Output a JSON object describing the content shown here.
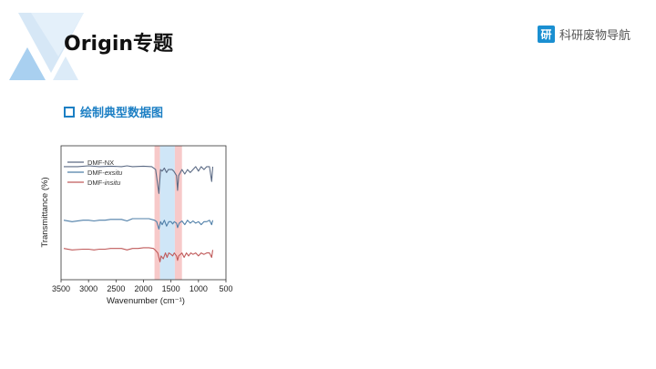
{
  "header": {
    "title": "Origin专题",
    "brand_logo_char": "研",
    "brand_name": "科研废物导航"
  },
  "section": {
    "heading": "绘制典型数据图"
  },
  "colors": {
    "accent_blue": "#1c7fc4",
    "brand_blue": "#1a8fd1",
    "series_nx": "#5c6b85",
    "series_exsitu": "#4f7fa8",
    "series_insitu": "#c05a5a",
    "band_red": "#f7c9c9",
    "band_blue": "#cfe6f7"
  },
  "chart_data": {
    "type": "line",
    "xlabel": "Wavenumber (cm⁻¹)",
    "ylabel": "Transmittance (%)",
    "xlim": [
      3500,
      500
    ],
    "xticks": [
      3500,
      3000,
      2500,
      2000,
      1500,
      1000,
      500
    ],
    "xtick_labels": [
      "3500",
      "3000",
      "2500",
      "2000",
      "1500",
      "1000",
      "500"
    ],
    "highlight_bands": [
      {
        "from": 1800,
        "to": 1700,
        "color": "red"
      },
      {
        "from": 1700,
        "to": 1430,
        "color": "blue"
      },
      {
        "from": 1430,
        "to": 1300,
        "color": "red"
      }
    ],
    "series": [
      {
        "name": "DMF-NX",
        "color": "#5c6b85",
        "points": [
          [
            3450,
            86
          ],
          [
            3200,
            86
          ],
          [
            3000,
            86.5
          ],
          [
            2800,
            86
          ],
          [
            2600,
            86.3
          ],
          [
            2400,
            86
          ],
          [
            2300,
            86.5
          ],
          [
            2200,
            86
          ],
          [
            2000,
            86.3
          ],
          [
            1850,
            86
          ],
          [
            1780,
            84
          ],
          [
            1720,
            68
          ],
          [
            1690,
            84
          ],
          [
            1660,
            83
          ],
          [
            1620,
            85
          ],
          [
            1580,
            82
          ],
          [
            1550,
            84
          ],
          [
            1480,
            84
          ],
          [
            1450,
            83
          ],
          [
            1400,
            80
          ],
          [
            1380,
            70
          ],
          [
            1360,
            80
          ],
          [
            1300,
            84
          ],
          [
            1250,
            81
          ],
          [
            1200,
            84
          ],
          [
            1150,
            82
          ],
          [
            1100,
            84
          ],
          [
            1050,
            86
          ],
          [
            1000,
            83
          ],
          [
            950,
            86
          ],
          [
            900,
            84
          ],
          [
            850,
            86
          ],
          [
            800,
            86
          ],
          [
            760,
            76
          ],
          [
            740,
            86
          ]
        ]
      },
      {
        "name": "DMF-exsitu",
        "color": "#4f7fa8",
        "points": [
          [
            3450,
            50
          ],
          [
            3300,
            49
          ],
          [
            3100,
            50
          ],
          [
            3000,
            50
          ],
          [
            2900,
            49.5
          ],
          [
            2800,
            50
          ],
          [
            2700,
            50
          ],
          [
            2600,
            50.5
          ],
          [
            2400,
            50.5
          ],
          [
            2300,
            49.5
          ],
          [
            2200,
            51
          ],
          [
            2100,
            51
          ],
          [
            2000,
            51
          ],
          [
            1900,
            51
          ],
          [
            1800,
            50
          ],
          [
            1760,
            49
          ],
          [
            1720,
            44
          ],
          [
            1690,
            49
          ],
          [
            1660,
            47
          ],
          [
            1620,
            50
          ],
          [
            1580,
            46
          ],
          [
            1540,
            49
          ],
          [
            1500,
            49
          ],
          [
            1470,
            47.5
          ],
          [
            1440,
            49
          ],
          [
            1400,
            48
          ],
          [
            1380,
            45
          ],
          [
            1350,
            48
          ],
          [
            1300,
            49.5
          ],
          [
            1250,
            47
          ],
          [
            1200,
            50
          ],
          [
            1150,
            48
          ],
          [
            1100,
            49.5
          ],
          [
            1050,
            48
          ],
          [
            1000,
            49
          ],
          [
            950,
            47
          ],
          [
            900,
            49
          ],
          [
            850,
            49
          ],
          [
            800,
            50
          ],
          [
            760,
            47
          ],
          [
            740,
            50
          ]
        ]
      },
      {
        "name": "DMF-insitu",
        "color": "#c05a5a",
        "points": [
          [
            3450,
            31
          ],
          [
            3300,
            30
          ],
          [
            3100,
            30.5
          ],
          [
            3000,
            30.5
          ],
          [
            2900,
            30
          ],
          [
            2800,
            30.5
          ],
          [
            2700,
            30.5
          ],
          [
            2600,
            31
          ],
          [
            2400,
            31
          ],
          [
            2300,
            30
          ],
          [
            2200,
            31
          ],
          [
            2100,
            31
          ],
          [
            2000,
            31.5
          ],
          [
            1900,
            31.5
          ],
          [
            1820,
            31
          ],
          [
            1790,
            30
          ],
          [
            1740,
            28
          ],
          [
            1700,
            22
          ],
          [
            1680,
            26
          ],
          [
            1640,
            24
          ],
          [
            1600,
            28
          ],
          [
            1570,
            25
          ],
          [
            1540,
            28
          ],
          [
            1500,
            27
          ],
          [
            1470,
            26
          ],
          [
            1440,
            28
          ],
          [
            1400,
            26
          ],
          [
            1380,
            23
          ],
          [
            1360,
            26
          ],
          [
            1300,
            28
          ],
          [
            1260,
            25
          ],
          [
            1220,
            28
          ],
          [
            1180,
            26
          ],
          [
            1140,
            28
          ],
          [
            1100,
            27
          ],
          [
            1050,
            28
          ],
          [
            1000,
            26
          ],
          [
            950,
            28
          ],
          [
            900,
            27
          ],
          [
            850,
            28
          ],
          [
            800,
            28
          ],
          [
            760,
            25
          ],
          [
            740,
            30
          ]
        ]
      }
    ],
    "legend": {
      "placement": "top-left",
      "entries": [
        {
          "prefix": "DMF-",
          "suffix": "NX",
          "italic_suffix": false,
          "color": "#5c6b85"
        },
        {
          "prefix": "DMF-",
          "suffix": "exsitu",
          "italic_suffix": true,
          "color": "#4f7fa8"
        },
        {
          "prefix": "DMF-",
          "suffix": "insitu",
          "italic_suffix": true,
          "color": "#c05a5a"
        }
      ]
    },
    "ylim": [
      10,
      100
    ],
    "grid": false
  }
}
